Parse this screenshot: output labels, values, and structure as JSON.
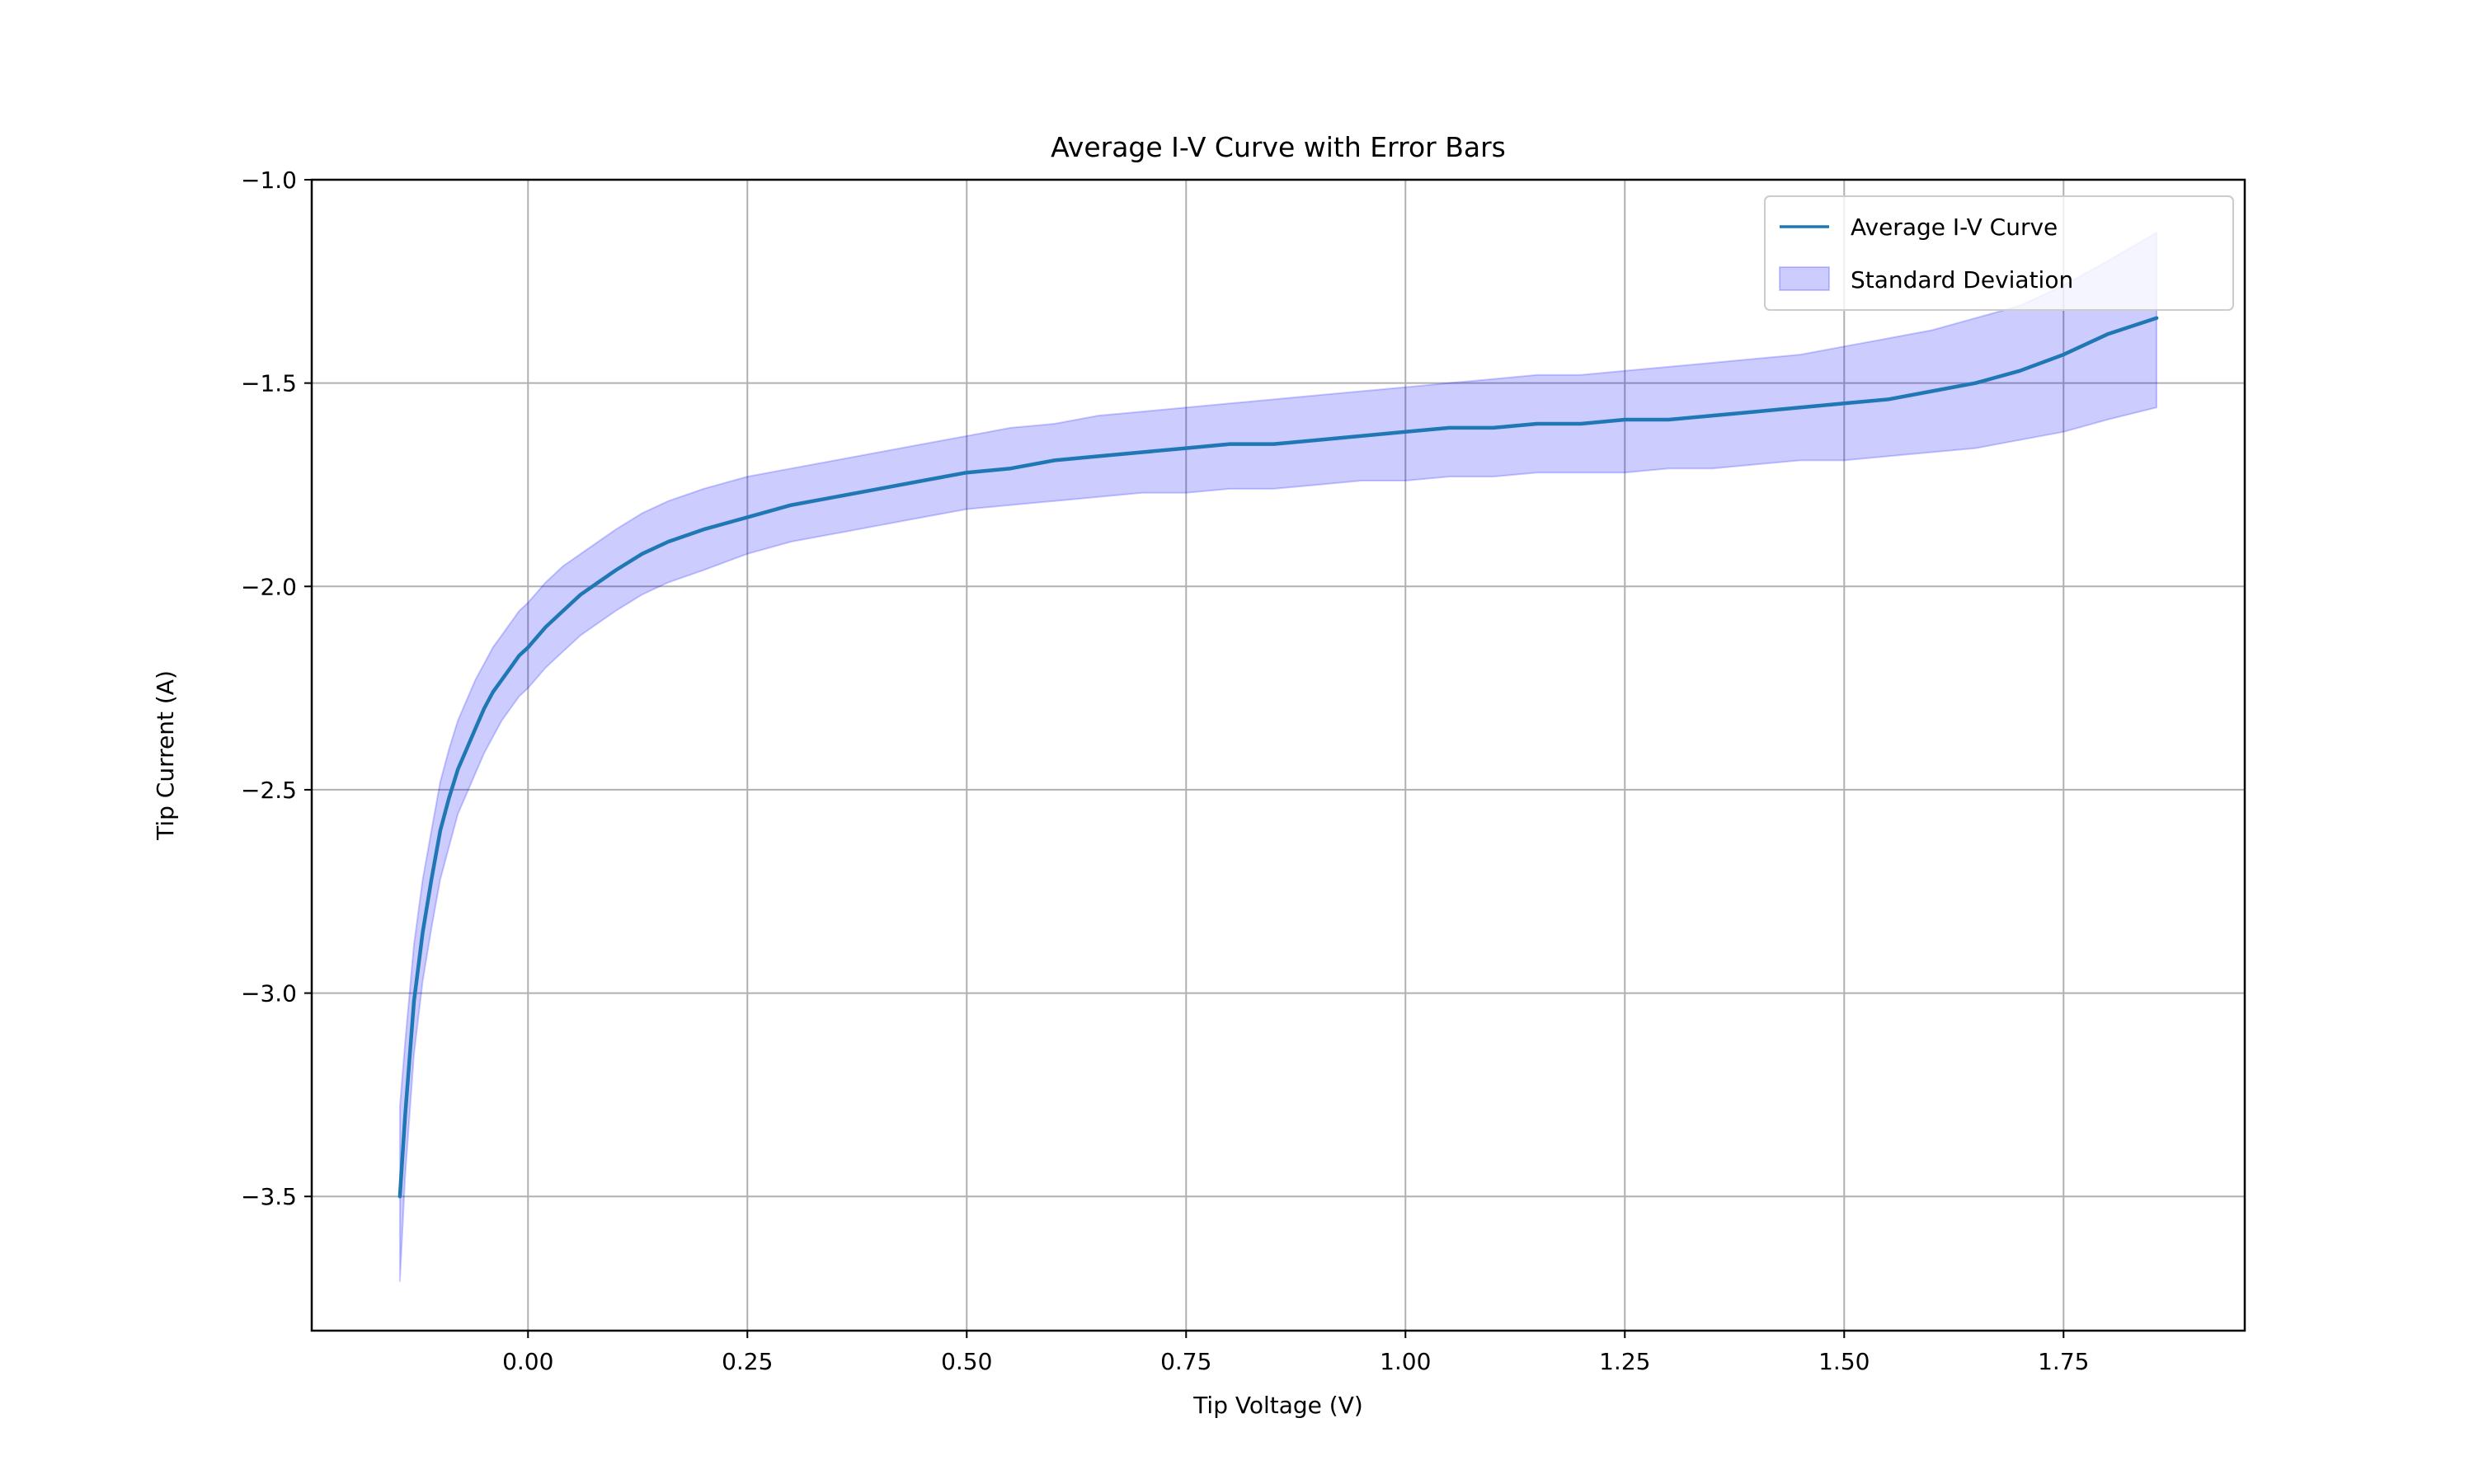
{
  "chart_data": {
    "type": "line",
    "title": "Average I-V Curve with Error Bars",
    "xlabel": "Tip Voltage (V)",
    "ylabel": "Tip Current (A)",
    "xlim": [
      -0.2465,
      1.9565
    ],
    "ylim": [
      -3.83,
      -1.0
    ],
    "xticks": [
      0.0,
      0.25,
      0.5,
      0.75,
      1.0,
      1.25,
      1.5,
      1.75
    ],
    "xtick_labels": [
      "0.00",
      "0.25",
      "0.50",
      "0.75",
      "1.00",
      "1.25",
      "1.50",
      "1.75"
    ],
    "yticks": [
      -1.0,
      -1.5,
      -2.0,
      -2.5,
      -3.0,
      -3.5
    ],
    "ytick_labels": [
      "−1.0",
      "−1.5",
      "−2.0",
      "−2.5",
      "−3.0",
      "−3.5"
    ],
    "grid": true,
    "legend_position": "top-right",
    "series": [
      {
        "name": "Average I-V Curve",
        "kind": "line",
        "color": "#1f77b4",
        "x": [
          -0.146,
          -0.14,
          -0.13,
          -0.12,
          -0.11,
          -0.1,
          -0.09,
          -0.08,
          -0.07,
          -0.06,
          -0.05,
          -0.04,
          -0.03,
          -0.02,
          -0.01,
          0.0,
          0.02,
          0.04,
          0.06,
          0.08,
          0.1,
          0.13,
          0.16,
          0.2,
          0.25,
          0.3,
          0.35,
          0.4,
          0.45,
          0.5,
          0.55,
          0.6,
          0.65,
          0.7,
          0.75,
          0.8,
          0.85,
          0.9,
          0.95,
          1.0,
          1.05,
          1.1,
          1.15,
          1.2,
          1.25,
          1.3,
          1.35,
          1.4,
          1.45,
          1.5,
          1.55,
          1.6,
          1.65,
          1.7,
          1.75,
          1.8,
          1.856
        ],
        "y": [
          -3.5,
          -3.3,
          -3.02,
          -2.85,
          -2.72,
          -2.6,
          -2.52,
          -2.45,
          -2.4,
          -2.35,
          -2.3,
          -2.26,
          -2.23,
          -2.2,
          -2.17,
          -2.15,
          -2.1,
          -2.06,
          -2.02,
          -1.99,
          -1.96,
          -1.92,
          -1.89,
          -1.86,
          -1.83,
          -1.8,
          -1.78,
          -1.76,
          -1.74,
          -1.72,
          -1.71,
          -1.69,
          -1.68,
          -1.67,
          -1.66,
          -1.65,
          -1.65,
          -1.64,
          -1.63,
          -1.62,
          -1.61,
          -1.61,
          -1.6,
          -1.6,
          -1.59,
          -1.59,
          -1.58,
          -1.57,
          -1.56,
          -1.55,
          -1.54,
          -1.52,
          -1.5,
          -1.47,
          -1.43,
          -1.38,
          -1.34
        ]
      },
      {
        "name": "Standard Deviation",
        "kind": "band",
        "color": "#0000ff",
        "x": [
          -0.146,
          -0.14,
          -0.13,
          -0.12,
          -0.11,
          -0.1,
          -0.09,
          -0.08,
          -0.07,
          -0.06,
          -0.05,
          -0.04,
          -0.03,
          -0.02,
          -0.01,
          0.0,
          0.02,
          0.04,
          0.06,
          0.08,
          0.1,
          0.13,
          0.16,
          0.2,
          0.25,
          0.3,
          0.35,
          0.4,
          0.45,
          0.5,
          0.55,
          0.6,
          0.65,
          0.7,
          0.75,
          0.8,
          0.85,
          0.9,
          0.95,
          1.0,
          1.05,
          1.1,
          1.15,
          1.2,
          1.25,
          1.3,
          1.35,
          1.4,
          1.45,
          1.5,
          1.55,
          1.6,
          1.65,
          1.7,
          1.75,
          1.8,
          1.856
        ],
        "lower": [
          -3.71,
          -3.45,
          -3.15,
          -2.97,
          -2.84,
          -2.72,
          -2.64,
          -2.56,
          -2.51,
          -2.46,
          -2.41,
          -2.37,
          -2.33,
          -2.3,
          -2.27,
          -2.25,
          -2.2,
          -2.16,
          -2.12,
          -2.09,
          -2.06,
          -2.02,
          -1.99,
          -1.96,
          -1.92,
          -1.89,
          -1.87,
          -1.85,
          -1.83,
          -1.81,
          -1.8,
          -1.79,
          -1.78,
          -1.77,
          -1.77,
          -1.76,
          -1.76,
          -1.75,
          -1.74,
          -1.74,
          -1.73,
          -1.73,
          -1.72,
          -1.72,
          -1.72,
          -1.71,
          -1.71,
          -1.7,
          -1.69,
          -1.69,
          -1.68,
          -1.67,
          -1.66,
          -1.64,
          -1.62,
          -1.59,
          -1.56
        ],
        "upper": [
          -3.28,
          -3.12,
          -2.88,
          -2.72,
          -2.6,
          -2.48,
          -2.4,
          -2.33,
          -2.28,
          -2.23,
          -2.19,
          -2.15,
          -2.12,
          -2.09,
          -2.06,
          -2.04,
          -1.99,
          -1.95,
          -1.92,
          -1.89,
          -1.86,
          -1.82,
          -1.79,
          -1.76,
          -1.73,
          -1.71,
          -1.69,
          -1.67,
          -1.65,
          -1.63,
          -1.61,
          -1.6,
          -1.58,
          -1.57,
          -1.56,
          -1.55,
          -1.54,
          -1.53,
          -1.52,
          -1.51,
          -1.5,
          -1.49,
          -1.48,
          -1.48,
          -1.47,
          -1.46,
          -1.45,
          -1.44,
          -1.43,
          -1.41,
          -1.39,
          -1.37,
          -1.34,
          -1.31,
          -1.26,
          -1.2,
          -1.13
        ]
      }
    ]
  }
}
